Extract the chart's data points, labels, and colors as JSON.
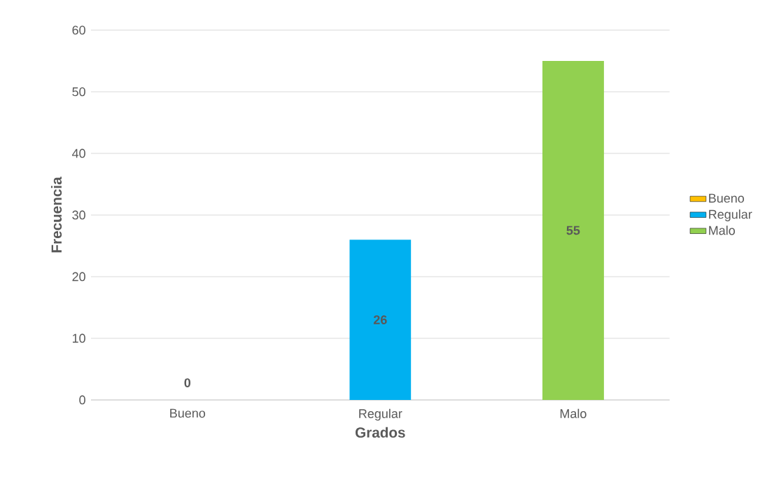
{
  "chart_data": {
    "type": "bar",
    "xlabel": "Grados",
    "ylabel": "Frecuencia",
    "categories": [
      "Bueno",
      "Regular",
      "Malo"
    ],
    "series": [
      {
        "name": "Bueno",
        "color": "#ffc000",
        "values": [
          0,
          null,
          null
        ]
      },
      {
        "name": "Regular",
        "color": "#00b0f0",
        "values": [
          null,
          26,
          null
        ]
      },
      {
        "name": "Malo",
        "color": "#92d050",
        "values": [
          null,
          null,
          55
        ]
      }
    ],
    "ylim": [
      0,
      60
    ],
    "yticks": [
      0,
      10,
      20,
      30,
      40,
      50,
      60
    ],
    "grid": "y",
    "legend": "right",
    "data_labels": true
  }
}
